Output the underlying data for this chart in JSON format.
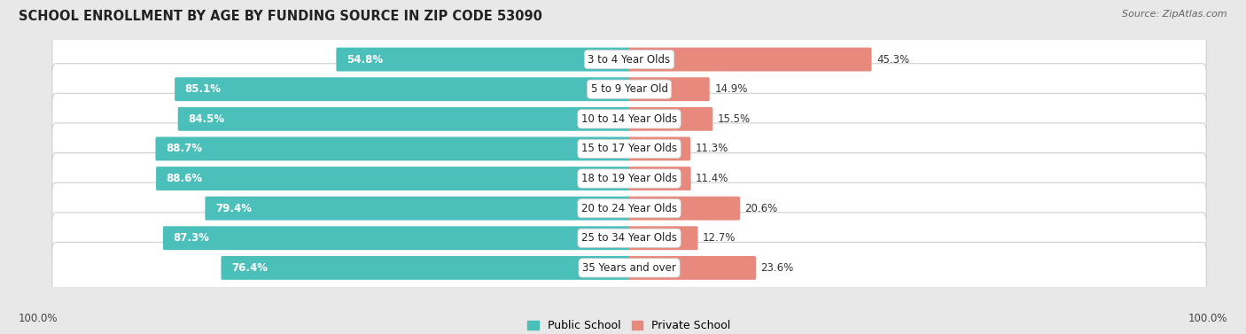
{
  "title": "SCHOOL ENROLLMENT BY AGE BY FUNDING SOURCE IN ZIP CODE 53090",
  "source": "Source: ZipAtlas.com",
  "categories": [
    "3 to 4 Year Olds",
    "5 to 9 Year Old",
    "10 to 14 Year Olds",
    "15 to 17 Year Olds",
    "18 to 19 Year Olds",
    "20 to 24 Year Olds",
    "25 to 34 Year Olds",
    "35 Years and over"
  ],
  "public_values": [
    54.8,
    85.1,
    84.5,
    88.7,
    88.6,
    79.4,
    87.3,
    76.4
  ],
  "private_values": [
    45.3,
    14.9,
    15.5,
    11.3,
    11.4,
    20.6,
    12.7,
    23.6
  ],
  "public_color": "#4bbfba",
  "private_color": "#e8897e",
  "row_color_even": "#ffffff",
  "row_color_odd": "#f5f5f5",
  "bg_color": "#e8e8e8",
  "title_fontsize": 10.5,
  "source_fontsize": 8,
  "label_fontsize": 8.5,
  "cat_fontsize": 8.5,
  "legend_fontsize": 9,
  "x_left_label": "100.0%",
  "x_right_label": "100.0%"
}
